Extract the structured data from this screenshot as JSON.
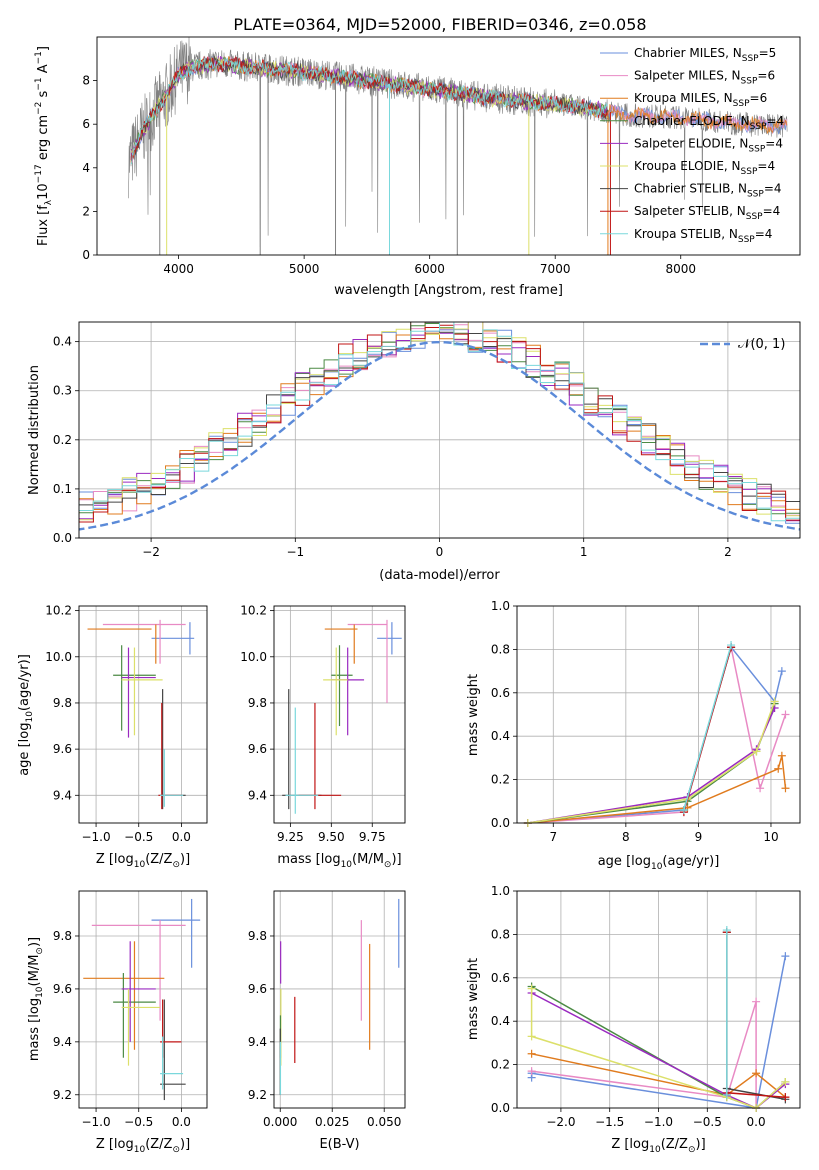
{
  "title": "PLATE=0364, MJD=52000, FIBERID=0346, z=0.058",
  "colors": {
    "Chabrier MILES": "#6a8fdc",
    "Salpeter MILES": "#e88ac4",
    "Kroupa MILES": "#e07b1e",
    "Chabrier ELODIE": "#4b8a44",
    "Salpeter ELODIE": "#9a2ac0",
    "Kroupa ELODIE": "#dce06a",
    "Chabrier STELIB": "#444444",
    "Salpeter STELIB": "#c01414",
    "Kroupa STELIB": "#7ad8dc",
    "data": "#808080",
    "normal": "#5b8ad8"
  },
  "chart_data": [
    {
      "type": "line",
      "panel": "spectrum",
      "xlabel": "wavelength [Angstrom, rest frame]",
      "ylabel_main": "Flux [f",
      "ylabel_sub": "λ",
      "ylabel_rest": "10",
      "ylabel_exp": "−17",
      "ylabel_units": " erg cm",
      "ylabel_units_exp": "−2",
      "ylabel_s": " s",
      "ylabel_s_exp": "−1",
      "ylabel_a": " A",
      "ylabel_a_exp": "−1",
      "ylabel_close": "]",
      "xlim": [
        3350,
        8950
      ],
      "ylim": [
        0,
        10
      ],
      "xticks": [
        4000,
        5000,
        6000,
        7000,
        8000
      ],
      "yticks": [
        0,
        2,
        4,
        6,
        8
      ],
      "continuum": [
        [
          3600,
          4.2
        ],
        [
          3700,
          5.5
        ],
        [
          3800,
          6.5
        ],
        [
          3900,
          7.3
        ],
        [
          4000,
          8.3
        ],
        [
          4100,
          8.6
        ],
        [
          4300,
          8.8
        ],
        [
          4600,
          8.6
        ],
        [
          5000,
          8.4
        ],
        [
          5500,
          8.0
        ],
        [
          6000,
          7.6
        ],
        [
          6500,
          7.2
        ],
        [
          7000,
          6.9
        ],
        [
          7200,
          6.8
        ],
        [
          7400,
          6.6
        ],
        [
          7600,
          6.4
        ],
        [
          8000,
          6.3
        ],
        [
          8500,
          6.0
        ],
        [
          8800,
          5.9
        ]
      ],
      "legend": [
        {
          "label": "Chabrier MILES, N",
          "sub": "SSP",
          "suffix": "=5"
        },
        {
          "label": "Salpeter MILES, N",
          "sub": "SSP",
          "suffix": "=6"
        },
        {
          "label": "Kroupa MILES, N",
          "sub": "SSP",
          "suffix": "=6"
        },
        {
          "label": "Chabrier ELODIE, N",
          "sub": "SSP",
          "suffix": "=4"
        },
        {
          "label": "Salpeter ELODIE, N",
          "sub": "SSP",
          "suffix": "=4"
        },
        {
          "label": "Kroupa ELODIE, N",
          "sub": "SSP",
          "suffix": "=4"
        },
        {
          "label": "Chabrier STELIB, N",
          "sub": "SSP",
          "suffix": "=4"
        },
        {
          "label": "Salpeter STELIB, N",
          "sub": "SSP",
          "suffix": "=4"
        },
        {
          "label": "Kroupa STELIB, N",
          "sub": "SSP",
          "suffix": "=4"
        }
      ]
    },
    {
      "type": "histogram",
      "panel": "residuals",
      "xlabel": "(data-model)/error",
      "ylabel": "Normed distribution",
      "xlim": [
        -2.5,
        2.5
      ],
      "ylim": [
        0,
        0.44
      ],
      "xticks": [
        -2,
        -1,
        0,
        1,
        2
      ],
      "yticks": [
        0.0,
        0.1,
        0.2,
        0.3,
        0.4
      ],
      "grid": true,
      "legend_label": "𝒩(0, 1)",
      "legend_position": "upper right"
    },
    {
      "type": "scatter",
      "panel": "age-vs-Z",
      "xlabel": "Z [log",
      "xlabel_sub": "10",
      "xlabel_rest": "(Z/Z",
      "xlabel_sun": "⊙",
      "xlabel_close": ")]",
      "ylabel": "age  [log",
      "ylabel_sub": "10",
      "ylabel_rest": "(age/yr)]",
      "xlim": [
        -1.2,
        0.3
      ],
      "ylim": [
        9.28,
        10.22
      ],
      "xticks": [
        -1.0,
        -0.5,
        0.0
      ],
      "yticks": [
        9.4,
        9.6,
        9.8,
        10.0,
        10.2
      ]
    },
    {
      "type": "scatter",
      "panel": "age-vs-mass",
      "xlabel": "mass [log",
      "xlabel_sub": "10",
      "xlabel_rest": "(M/M",
      "xlabel_sun": "⊙",
      "xlabel_close": ")]",
      "xlim": [
        9.15,
        9.95
      ],
      "ylim": [
        9.28,
        10.22
      ],
      "xticks": [
        9.25,
        9.5,
        9.75
      ],
      "yticks": [
        9.4,
        9.6,
        9.8,
        10.0,
        10.2
      ]
    },
    {
      "type": "line",
      "panel": "weight-vs-age",
      "xlabel": "age  [log",
      "xlabel_sub": "10",
      "xlabel_rest": "(age/yr)]",
      "ylabel": "mass weight",
      "xlim": [
        6.5,
        10.4
      ],
      "ylim": [
        0,
        1
      ],
      "xticks": [
        7,
        8,
        9,
        10
      ],
      "yticks": [
        0.0,
        0.2,
        0.4,
        0.6,
        0.8,
        1.0
      ],
      "grid": true,
      "series": [
        {
          "name": "Chabrier MILES",
          "points": [
            [
              6.65,
              0.0
            ],
            [
              8.8,
              0.06
            ],
            [
              9.45,
              0.81
            ],
            [
              10.05,
              0.56
            ],
            [
              10.15,
              0.7
            ]
          ]
        },
        {
          "name": "Salpeter MILES",
          "points": [
            [
              6.65,
              0.0
            ],
            [
              8.8,
              0.05
            ],
            [
              9.45,
              0.81
            ],
            [
              9.85,
              0.16
            ],
            [
              10.2,
              0.5
            ]
          ]
        },
        {
          "name": "Kroupa MILES",
          "points": [
            [
              6.65,
              0.0
            ],
            [
              8.85,
              0.07
            ],
            [
              10.1,
              0.25
            ],
            [
              10.15,
              0.31
            ],
            [
              10.2,
              0.16
            ]
          ]
        },
        {
          "name": "Chabrier ELODIE",
          "points": [
            [
              6.65,
              0.0
            ],
            [
              8.85,
              0.1
            ],
            [
              9.8,
              0.33
            ],
            [
              10.05,
              0.55
            ]
          ]
        },
        {
          "name": "Salpeter ELODIE",
          "points": [
            [
              6.65,
              0.0
            ],
            [
              8.85,
              0.12
            ],
            [
              9.8,
              0.34
            ],
            [
              10.05,
              0.53
            ]
          ]
        },
        {
          "name": "Kroupa ELODIE",
          "points": [
            [
              6.65,
              0.0
            ],
            [
              8.85,
              0.11
            ],
            [
              9.8,
              0.33
            ],
            [
              10.05,
              0.56
            ]
          ]
        },
        {
          "name": "Chabrier STELIB",
          "points": [
            [
              8.8,
              0.06
            ],
            [
              9.45,
              0.81
            ]
          ]
        },
        {
          "name": "Salpeter STELIB",
          "points": [
            [
              8.8,
              0.05
            ],
            [
              9.45,
              0.81
            ]
          ]
        },
        {
          "name": "Kroupa STELIB",
          "points": [
            [
              8.8,
              0.06
            ],
            [
              9.45,
              0.82
            ]
          ]
        }
      ]
    },
    {
      "type": "scatter",
      "panel": "mass-vs-Z",
      "xlabel": "Z [log",
      "xlabel_sub": "10",
      "xlabel_rest": "(Z/Z",
      "xlabel_sun": "⊙",
      "xlabel_close": ")]",
      "ylabel": "mass [log",
      "ylabel_sub": "10",
      "ylabel_rest": "(M/M",
      "ylabel_sun": "⊙",
      "ylabel_close": ")]",
      "xlim": [
        -1.2,
        0.3
      ],
      "ylim": [
        9.15,
        9.97
      ],
      "xticks": [
        -1.0,
        -0.5,
        0.0
      ],
      "yticks": [
        9.2,
        9.4,
        9.6,
        9.8
      ]
    },
    {
      "type": "scatter",
      "panel": "mass-vs-ebv",
      "xlabel": "E(B-V)",
      "xlim": [
        -0.003,
        0.06
      ],
      "ylim": [
        9.15,
        9.97
      ],
      "xticks": [
        "0.000",
        "0.025",
        "0.050"
      ],
      "yticks": [
        9.2,
        9.4,
        9.6,
        9.8
      ]
    },
    {
      "type": "line",
      "panel": "weight-vs-Z",
      "xlabel": "Z [log",
      "xlabel_sub": "10",
      "xlabel_rest": "(Z/Z",
      "xlabel_sun": "⊙",
      "xlabel_close": ")]",
      "ylabel": "mass weight",
      "xlim": [
        -2.45,
        0.45
      ],
      "ylim": [
        0,
        1
      ],
      "xticks": [
        -2.0,
        -1.5,
        -1.0,
        -0.5,
        0.0
      ],
      "yticks": [
        0.0,
        0.2,
        0.4,
        0.6,
        0.8,
        1.0
      ],
      "grid": true,
      "series": [
        {
          "name": "Chabrier MILES",
          "points": [
            [
              -2.3,
              0.14
            ],
            [
              -2.3,
              0.16
            ],
            [
              0.0,
              0.0
            ],
            [
              0.3,
              0.7
            ]
          ]
        },
        {
          "name": "Salpeter MILES",
          "points": [
            [
              -2.3,
              0.17
            ],
            [
              -0.3,
              0.05
            ],
            [
              0.0,
              0.49
            ],
            [
              0.0,
              0.0
            ]
          ]
        },
        {
          "name": "Kroupa MILES",
          "points": [
            [
              -2.3,
              0.25
            ],
            [
              -0.3,
              0.06
            ],
            [
              0.0,
              0.16
            ],
            [
              0.3,
              0.05
            ]
          ]
        },
        {
          "name": "Chabrier ELODIE",
          "points": [
            [
              -2.3,
              0.56
            ],
            [
              -0.3,
              0.05
            ],
            [
              0.0,
              0.0
            ],
            [
              0.3,
              0.12
            ]
          ]
        },
        {
          "name": "Salpeter ELODIE",
          "points": [
            [
              -2.3,
              0.53
            ],
            [
              -0.3,
              0.06
            ],
            [
              0.0,
              0.0
            ],
            [
              0.3,
              0.11
            ]
          ]
        },
        {
          "name": "Kroupa ELODIE",
          "points": [
            [
              -2.3,
              0.55
            ],
            [
              -2.3,
              0.33
            ],
            [
              -0.3,
              0.05
            ],
            [
              0.0,
              0.0
            ],
            [
              0.3,
              0.12
            ]
          ]
        },
        {
          "name": "Chabrier STELIB",
          "points": [
            [
              -0.3,
              0.81
            ],
            [
              -0.3,
              0.09
            ],
            [
              0.3,
              0.04
            ]
          ]
        },
        {
          "name": "Salpeter STELIB",
          "points": [
            [
              -0.3,
              0.81
            ],
            [
              -0.3,
              0.07
            ],
            [
              0.3,
              0.05
            ]
          ]
        },
        {
          "name": "Kroupa STELIB",
          "points": [
            [
              -0.3,
              0.82
            ],
            [
              -0.3,
              0.06
            ]
          ]
        }
      ]
    }
  ]
}
